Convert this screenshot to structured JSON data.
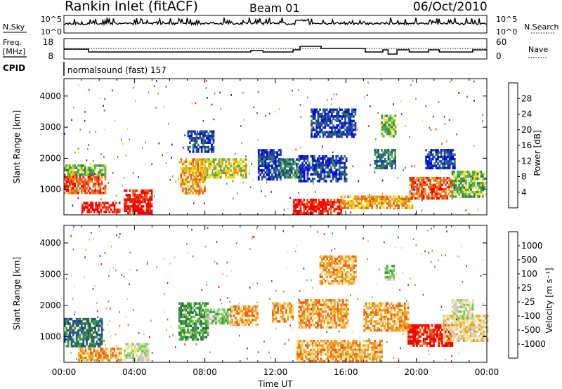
{
  "header": {
    "station": "Rankin Inlet (fitACF)",
    "beam": "Beam 01",
    "date": "06/Oct/2010"
  },
  "top_panels": {
    "nsky_label": "N.Sky",
    "nsky_ticks": [
      "10^5",
      "10^0"
    ],
    "nsearch_label": "N.Search",
    "nsearch_ticks": [
      "10^5",
      "10^0"
    ],
    "freq_label_line1": "Freq.",
    "freq_label_line2": "[MHz]",
    "freq_ticks": [
      "18",
      "8"
    ],
    "nave_label": "Nave",
    "nave_ticks": [
      "60",
      "0"
    ],
    "cpid_label": "CPID",
    "cpid_text": "normalsound (fast) 157"
  },
  "chart_data": [
    {
      "type": "heatmap",
      "title": "",
      "xlabel": "",
      "ylabel": "Slant Range [km]",
      "x_ticks": [
        "00:00",
        "04:00",
        "08:00",
        "12:00",
        "16:00",
        "20:00",
        "00:00"
      ],
      "xlim_hours": [
        0,
        24
      ],
      "y_ticks": [
        1000,
        2000,
        3000,
        4000
      ],
      "ylim": [
        180,
        4560
      ],
      "colorbar": {
        "label": "Power [dB]",
        "ticks": [
          "28",
          "24",
          "20",
          "16",
          "12",
          "8",
          "4"
        ],
        "colors": [
          "#0000ff",
          "#1e3fa0",
          "#2e7d5b",
          "#4fb04a",
          "#e6e020",
          "#f49a1a",
          "#ef5a14",
          "#ff0000"
        ]
      },
      "regions": [
        {
          "t0": 0.0,
          "t1": 2.3,
          "r0": 900,
          "r1": 1500,
          "level": 6
        },
        {
          "t0": 0.0,
          "t1": 2.3,
          "r0": 1500,
          "r1": 1800,
          "level": 3
        },
        {
          "t0": 1.0,
          "t1": 3.2,
          "r0": 250,
          "r1": 600,
          "level": 7
        },
        {
          "t0": 3.4,
          "t1": 5.0,
          "r0": 250,
          "r1": 1000,
          "level": 7
        },
        {
          "t0": 6.6,
          "t1": 8.0,
          "r0": 900,
          "r1": 2000,
          "level": 5
        },
        {
          "t0": 7.0,
          "t1": 8.5,
          "r0": 2200,
          "r1": 2900,
          "level": 1
        },
        {
          "t0": 7.8,
          "t1": 10.3,
          "r0": 1400,
          "r1": 2000,
          "level": 4
        },
        {
          "t0": 11.0,
          "t1": 12.3,
          "r0": 1300,
          "r1": 2300,
          "level": 1
        },
        {
          "t0": 12.3,
          "t1": 13.4,
          "r0": 1400,
          "r1": 2000,
          "level": 2
        },
        {
          "t0": 13.0,
          "t1": 15.7,
          "r0": 250,
          "r1": 700,
          "level": 7
        },
        {
          "t0": 14.0,
          "t1": 16.5,
          "r0": 2700,
          "r1": 3600,
          "level": 1
        },
        {
          "t0": 13.3,
          "t1": 16.0,
          "r0": 1300,
          "r1": 2100,
          "level": 1
        },
        {
          "t0": 15.7,
          "t1": 19.8,
          "r0": 400,
          "r1": 800,
          "level": 5
        },
        {
          "t0": 18.0,
          "t1": 18.8,
          "r0": 2700,
          "r1": 3400,
          "level": 3
        },
        {
          "t0": 17.6,
          "t1": 18.8,
          "r0": 1700,
          "r1": 2300,
          "level": 2
        },
        {
          "t0": 19.6,
          "t1": 22.0,
          "r0": 700,
          "r1": 1400,
          "level": 6
        },
        {
          "t0": 22.0,
          "t1": 24.0,
          "r0": 800,
          "r1": 1600,
          "level": 3
        },
        {
          "t0": 20.5,
          "t1": 22.2,
          "r0": 1700,
          "r1": 2300,
          "level": 1
        }
      ]
    },
    {
      "type": "heatmap",
      "title": "",
      "xlabel": "Time UT",
      "ylabel": "Slant Range [km]",
      "x_ticks": [
        "00:00",
        "04:00",
        "08:00",
        "12:00",
        "16:00",
        "20:00",
        "00:00"
      ],
      "xlim_hours": [
        0,
        24
      ],
      "y_ticks": [
        1000,
        2000,
        3000,
        4000
      ],
      "ylim": [
        180,
        4560
      ],
      "colorbar": {
        "label": "Velocity [m s⁻¹]",
        "ticks": [
          "1000",
          "500",
          "100",
          "25",
          "-25",
          "-100",
          "-500",
          "-1000"
        ],
        "colors": [
          "#1a3fc0",
          "#2f6a45",
          "#3f9a45",
          "#6ccf3a",
          "#c8c8c8",
          "#f0df88",
          "#f7a020",
          "#f26010",
          "#ff0000"
        ]
      },
      "regions": [
        {
          "t0": 0.0,
          "t1": 2.2,
          "r0": 700,
          "r1": 1600,
          "level": 1
        },
        {
          "t0": 0.8,
          "t1": 3.2,
          "r0": 250,
          "r1": 650,
          "level": 6
        },
        {
          "t0": 3.4,
          "t1": 4.8,
          "r0": 250,
          "r1": 800,
          "level": 4
        },
        {
          "t0": 6.5,
          "t1": 8.2,
          "r0": 900,
          "r1": 2100,
          "level": 2
        },
        {
          "t0": 8.0,
          "t1": 9.5,
          "r0": 1400,
          "r1": 1900,
          "level": 3
        },
        {
          "t0": 9.4,
          "t1": 11.0,
          "r0": 1400,
          "r1": 2000,
          "level": 6
        },
        {
          "t0": 11.8,
          "t1": 13.0,
          "r0": 1500,
          "r1": 2100,
          "level": 6
        },
        {
          "t0": 13.3,
          "t1": 16.1,
          "r0": 1300,
          "r1": 2200,
          "level": 6
        },
        {
          "t0": 13.2,
          "t1": 18.0,
          "r0": 250,
          "r1": 900,
          "level": 6
        },
        {
          "t0": 14.5,
          "t1": 16.6,
          "r0": 2700,
          "r1": 3600,
          "level": 6
        },
        {
          "t0": 17.0,
          "t1": 19.5,
          "r0": 1200,
          "r1": 2100,
          "level": 6
        },
        {
          "t0": 18.2,
          "t1": 18.7,
          "r0": 2800,
          "r1": 3300,
          "level": 3
        },
        {
          "t0": 19.5,
          "t1": 22.0,
          "r0": 700,
          "r1": 1400,
          "level": 8
        },
        {
          "t0": 21.5,
          "t1": 24.0,
          "r0": 900,
          "r1": 1700,
          "level": 5
        },
        {
          "t0": 22.0,
          "t1": 23.2,
          "r0": 1600,
          "r1": 2200,
          "level": 4
        }
      ]
    }
  ]
}
